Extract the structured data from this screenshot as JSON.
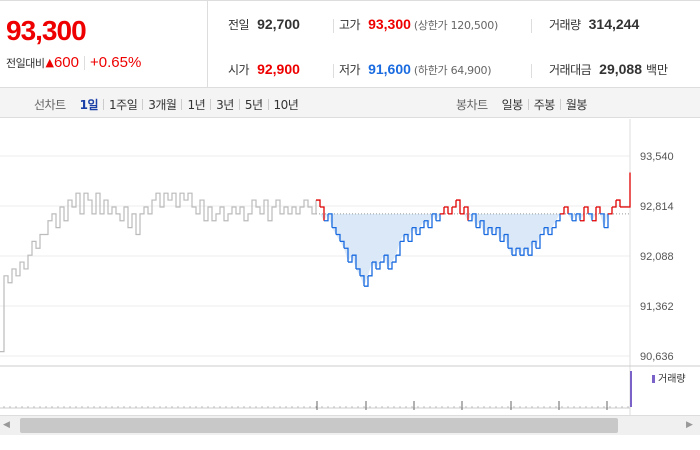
{
  "summary": {
    "price": "93,300",
    "change_label": "전일대비",
    "change_arrow": "▲",
    "change_value": "600",
    "change_pct": "+0.65%"
  },
  "stats": {
    "prev_close": {
      "label": "전일",
      "value": "92,700"
    },
    "high": {
      "label": "고가",
      "value": "93,300",
      "sub": "(상한가 120,500)"
    },
    "volume": {
      "label": "거래량",
      "value": "314,244"
    },
    "open": {
      "label": "시가",
      "value": "92,900"
    },
    "low": {
      "label": "저가",
      "value": "91,600",
      "sub": "(하한가 64,900)"
    },
    "trade_amount": {
      "label": "거래대금",
      "value": "29,088",
      "unit": "백만"
    }
  },
  "toolbar": {
    "line_chart_label": "선차트",
    "line_periods": [
      "1일",
      "1주일",
      "3개월",
      "1년",
      "3년",
      "5년",
      "10년"
    ],
    "active_period": "1일",
    "candle_chart_label": "봉차트",
    "candle_periods": [
      "일봉",
      "주봉",
      "월봉"
    ]
  },
  "chart_data": {
    "type": "line",
    "y_ticks": [
      "93,540",
      "92,814",
      "92,088",
      "91,362",
      "90,636"
    ],
    "ylim": [
      90636,
      93540
    ],
    "reference_price": 92700,
    "volume_legend": "거래량",
    "prev_series_points": [
      [
        0,
        90700
      ],
      [
        4,
        91800
      ],
      [
        8,
        91700
      ],
      [
        12,
        91900
      ],
      [
        16,
        91800
      ],
      [
        20,
        92000
      ],
      [
        24,
        91900
      ],
      [
        28,
        92100
      ],
      [
        32,
        92300
      ],
      [
        36,
        92200
      ],
      [
        40,
        92400
      ],
      [
        44,
        92400
      ],
      [
        48,
        92600
      ],
      [
        52,
        92700
      ],
      [
        56,
        92500
      ],
      [
        60,
        92800
      ],
      [
        64,
        92600
      ],
      [
        68,
        92900
      ],
      [
        72,
        92800
      ],
      [
        76,
        93000
      ],
      [
        80,
        92700
      ],
      [
        84,
        93000
      ],
      [
        88,
        92900
      ],
      [
        92,
        92700
      ],
      [
        96,
        93000
      ],
      [
        100,
        92700
      ],
      [
        104,
        92900
      ],
      [
        108,
        92700
      ],
      [
        112,
        92800
      ],
      [
        116,
        92700
      ],
      [
        120,
        92600
      ],
      [
        124,
        92800
      ],
      [
        128,
        92500
      ],
      [
        132,
        92700
      ],
      [
        136,
        92400
      ],
      [
        140,
        92700
      ],
      [
        144,
        92800
      ],
      [
        148,
        92700
      ],
      [
        152,
        92900
      ],
      [
        156,
        93000
      ],
      [
        160,
        92800
      ],
      [
        164,
        93000
      ],
      [
        168,
        92900
      ],
      [
        172,
        93000
      ],
      [
        176,
        92800
      ],
      [
        180,
        93000
      ],
      [
        184,
        92900
      ],
      [
        188,
        93000
      ],
      [
        192,
        92800
      ],
      [
        196,
        92700
      ],
      [
        200,
        92900
      ],
      [
        204,
        92600
      ],
      [
        208,
        92800
      ],
      [
        212,
        92600
      ],
      [
        216,
        92700
      ],
      [
        220,
        92800
      ],
      [
        224,
        92600
      ],
      [
        228,
        92700
      ],
      [
        232,
        92800
      ],
      [
        236,
        92700
      ],
      [
        240,
        92800
      ],
      [
        244,
        92600
      ],
      [
        248,
        92700
      ],
      [
        252,
        92900
      ],
      [
        256,
        92800
      ],
      [
        260,
        92700
      ],
      [
        264,
        92900
      ],
      [
        268,
        92600
      ],
      [
        272,
        92800
      ],
      [
        276,
        92900
      ],
      [
        280,
        92700
      ],
      [
        284,
        92800
      ],
      [
        288,
        92700
      ],
      [
        292,
        92800
      ],
      [
        296,
        92700
      ],
      [
        300,
        92800
      ],
      [
        304,
        92900
      ],
      [
        308,
        92800
      ],
      [
        312,
        92700
      ],
      [
        316,
        92900
      ]
    ],
    "today_series_points": [
      [
        316,
        92900
      ],
      [
        320,
        92800
      ],
      [
        324,
        92600
      ],
      [
        328,
        92700
      ],
      [
        332,
        92500
      ],
      [
        336,
        92400
      ],
      [
        340,
        92300
      ],
      [
        344,
        92200
      ],
      [
        348,
        92000
      ],
      [
        352,
        92100
      ],
      [
        356,
        91900
      ],
      [
        360,
        91800
      ],
      [
        364,
        91650
      ],
      [
        368,
        91800
      ],
      [
        372,
        92000
      ],
      [
        376,
        91900
      ],
      [
        380,
        92000
      ],
      [
        384,
        92100
      ],
      [
        388,
        91900
      ],
      [
        392,
        92000
      ],
      [
        396,
        92100
      ],
      [
        400,
        92300
      ],
      [
        404,
        92400
      ],
      [
        408,
        92300
      ],
      [
        412,
        92500
      ],
      [
        416,
        92400
      ],
      [
        420,
        92500
      ],
      [
        424,
        92600
      ],
      [
        428,
        92500
      ],
      [
        432,
        92700
      ],
      [
        436,
        92600
      ],
      [
        440,
        92700
      ],
      [
        444,
        92800
      ],
      [
        448,
        92700
      ],
      [
        452,
        92800
      ],
      [
        456,
        92900
      ],
      [
        460,
        92700
      ],
      [
        464,
        92800
      ],
      [
        468,
        92600
      ],
      [
        472,
        92700
      ],
      [
        476,
        92500
      ],
      [
        480,
        92600
      ],
      [
        484,
        92400
      ],
      [
        488,
        92500
      ],
      [
        492,
        92400
      ],
      [
        496,
        92500
      ],
      [
        500,
        92300
      ],
      [
        504,
        92400
      ],
      [
        508,
        92200
      ],
      [
        512,
        92100
      ],
      [
        516,
        92200
      ],
      [
        520,
        92100
      ],
      [
        524,
        92200
      ],
      [
        528,
        92100
      ],
      [
        532,
        92300
      ],
      [
        536,
        92200
      ],
      [
        540,
        92400
      ],
      [
        544,
        92500
      ],
      [
        548,
        92400
      ],
      [
        552,
        92500
      ],
      [
        556,
        92600
      ],
      [
        560,
        92700
      ],
      [
        564,
        92800
      ],
      [
        568,
        92700
      ],
      [
        572,
        92600
      ],
      [
        576,
        92700
      ],
      [
        580,
        92600
      ],
      [
        584,
        92800
      ],
      [
        588,
        92700
      ],
      [
        592,
        92600
      ],
      [
        596,
        92800
      ],
      [
        600,
        92700
      ],
      [
        604,
        92500
      ],
      [
        608,
        92700
      ],
      [
        612,
        92800
      ],
      [
        616,
        92900
      ],
      [
        620,
        92800
      ],
      [
        624,
        92800
      ],
      [
        628,
        92800
      ],
      [
        630,
        93300
      ]
    ]
  },
  "colors": {
    "up": "#e00000",
    "down": "#1a6be0",
    "prev_line": "#bbbbbb",
    "fill": "#dbe8f8",
    "volume": "#7a62c8"
  }
}
